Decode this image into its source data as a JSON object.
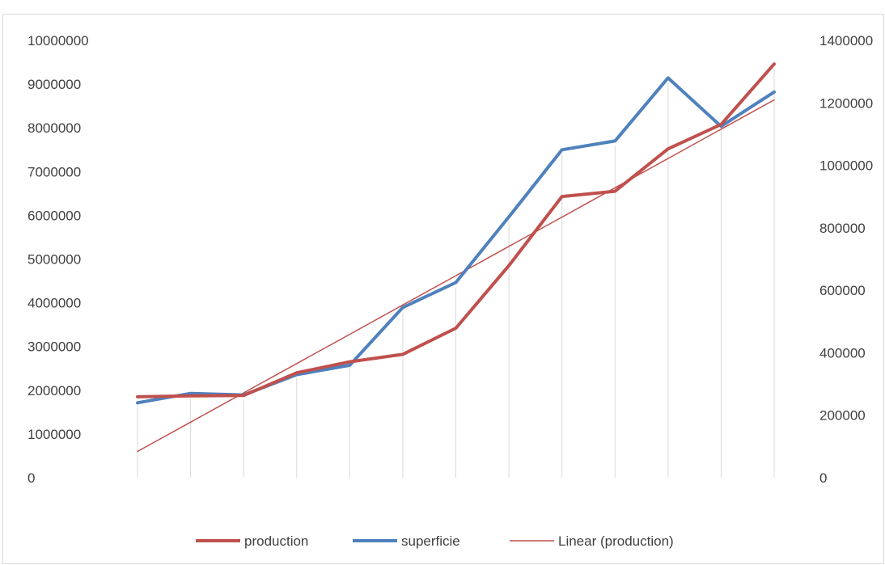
{
  "chart_data": {
    "type": "line",
    "title": "",
    "xlabel": "",
    "ylabel": "",
    "categories": [
      "",
      "",
      "",
      "",
      "",
      "",
      "",
      "",
      "",
      "",
      "",
      "",
      ""
    ],
    "series": [
      {
        "name": "production",
        "axis": "left",
        "color": "#c0504d",
        "values": [
          1850000,
          1870000,
          1880000,
          2400000,
          2650000,
          2820000,
          3420000,
          4850000,
          6430000,
          6550000,
          7520000,
          8080000,
          9460000
        ]
      },
      {
        "name": "superficie",
        "axis": "right",
        "color": "#4f81bd",
        "values": [
          240000,
          270000,
          265000,
          330000,
          360000,
          545000,
          625000,
          835000,
          1050000,
          1078000,
          1280000,
          1125000,
          1235000
        ]
      },
      {
        "name": "Linear (production)",
        "axis": "left",
        "color": "#c0504d",
        "trendline_of": "production",
        "values": [
          600000,
          1270000,
          1940000,
          2610000,
          3280000,
          3950000,
          4620000,
          5290000,
          5960000,
          6630000,
          7300000,
          7970000,
          8640000
        ]
      }
    ],
    "ylim": [
      0,
      10000000
    ],
    "y_ticks": [
      "0",
      "1000000",
      "2000000",
      "3000000",
      "4000000",
      "5000000",
      "6000000",
      "7000000",
      "8000000",
      "9000000",
      "10000000"
    ],
    "y2lim": [
      0,
      1400000
    ],
    "y2_ticks": [
      "0",
      "200000",
      "400000",
      "600000",
      "800000",
      "1000000",
      "1200000",
      "1400000"
    ],
    "grid": "vertical",
    "legend_position": "bottom"
  }
}
